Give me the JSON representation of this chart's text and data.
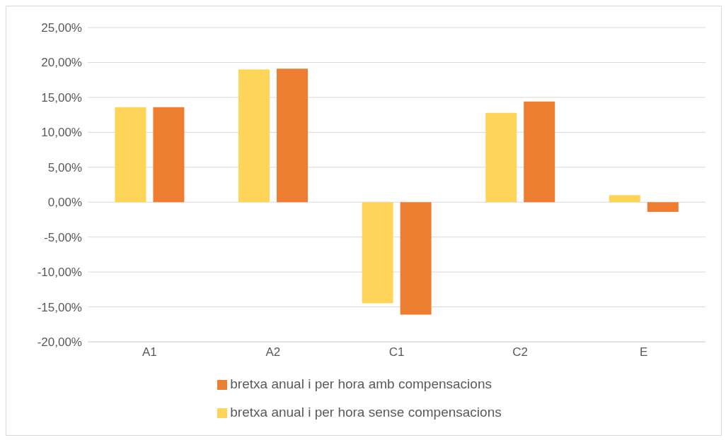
{
  "chart_data": {
    "type": "bar",
    "categories": [
      "A1",
      "A2",
      "C1",
      "C2",
      "E"
    ],
    "series": [
      {
        "name": "bretxa anual i per hora sense compensacions",
        "color": "#ffd559",
        "values": [
          13.6,
          19.0,
          -14.5,
          12.8,
          1.0
        ]
      },
      {
        "name": "bretxa anual i per hora amb compensacions",
        "color": "#ed7d31",
        "values": [
          13.6,
          19.1,
          -16.1,
          14.4,
          -1.4
        ]
      }
    ],
    "ylim": [
      -20,
      25
    ],
    "yticks": [
      {
        "value": -20,
        "label": "-20,00%"
      },
      {
        "value": -15,
        "label": "-15,00%"
      },
      {
        "value": -10,
        "label": "-10,00%"
      },
      {
        "value": -5,
        "label": "-5,00%"
      },
      {
        "value": 0,
        "label": "0,00%"
      },
      {
        "value": 5,
        "label": "5,00%"
      },
      {
        "value": 10,
        "label": "10,00%"
      },
      {
        "value": 15,
        "label": "15,00%"
      },
      {
        "value": 20,
        "label": "20,00%"
      },
      {
        "value": 25,
        "label": "25,00%"
      }
    ],
    "grid": "y",
    "legend": "bottom"
  }
}
